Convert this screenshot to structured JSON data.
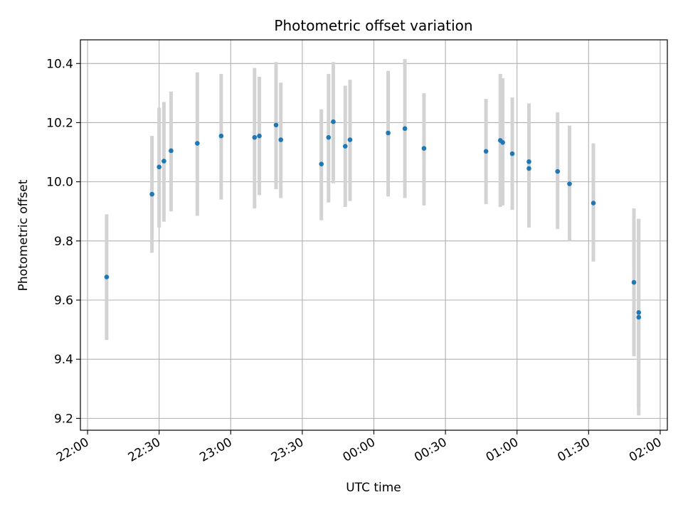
{
  "chart_data": {
    "type": "scatter",
    "title": "Photometric offset variation",
    "xlabel": "UTC time",
    "ylabel": "Photometric offset",
    "x_ticks": [
      "22:00",
      "22:30",
      "23:00",
      "23:30",
      "00:00",
      "00:30",
      "01:00",
      "01:30",
      "02:00"
    ],
    "y_ticks": [
      "9.2",
      "9.4",
      "9.6",
      "9.8",
      "10.0",
      "10.2",
      "10.4"
    ],
    "x_tick_minutes": [
      0,
      30,
      60,
      90,
      120,
      150,
      180,
      210,
      240
    ],
    "xlim_minutes": [
      -3,
      243
    ],
    "ylim": [
      9.16,
      10.48
    ],
    "grid": true,
    "marker_color": "#1f77b4",
    "errorbar_color": "#d3d3d3",
    "points": [
      {
        "t": "22:08",
        "y": 9.678,
        "lo": 9.465,
        "hi": 9.89
      },
      {
        "t": "22:27",
        "y": 9.958,
        "lo": 9.76,
        "hi": 10.155
      },
      {
        "t": "22:30",
        "y": 10.05,
        "lo": 9.845,
        "hi": 10.25
      },
      {
        "t": "22:32",
        "y": 10.07,
        "lo": 9.865,
        "hi": 10.27
      },
      {
        "t": "22:35",
        "y": 10.105,
        "lo": 9.9,
        "hi": 10.305
      },
      {
        "t": "22:46",
        "y": 10.13,
        "lo": 9.885,
        "hi": 10.37
      },
      {
        "t": "22:56",
        "y": 10.155,
        "lo": 9.94,
        "hi": 10.365
      },
      {
        "t": "23:10",
        "y": 10.15,
        "lo": 9.91,
        "hi": 10.385
      },
      {
        "t": "23:12",
        "y": 10.155,
        "lo": 9.955,
        "hi": 10.355
      },
      {
        "t": "23:19",
        "y": 10.192,
        "lo": 9.975,
        "hi": 10.405
      },
      {
        "t": "23:21",
        "y": 10.142,
        "lo": 9.945,
        "hi": 10.335
      },
      {
        "t": "23:38",
        "y": 10.06,
        "lo": 9.87,
        "hi": 10.245
      },
      {
        "t": "23:41",
        "y": 10.15,
        "lo": 9.93,
        "hi": 10.365
      },
      {
        "t": "23:43",
        "y": 10.203,
        "lo": 9.995,
        "hi": 10.405
      },
      {
        "t": "23:48",
        "y": 10.12,
        "lo": 9.915,
        "hi": 10.325
      },
      {
        "t": "23:50",
        "y": 10.142,
        "lo": 9.935,
        "hi": 10.345
      },
      {
        "t": "00:06",
        "y": 10.165,
        "lo": 9.95,
        "hi": 10.375
      },
      {
        "t": "00:13",
        "y": 10.18,
        "lo": 9.945,
        "hi": 10.415
      },
      {
        "t": "00:21",
        "y": 10.113,
        "lo": 9.92,
        "hi": 10.3
      },
      {
        "t": "00:47",
        "y": 10.103,
        "lo": 9.925,
        "hi": 10.28
      },
      {
        "t": "00:53",
        "y": 10.14,
        "lo": 9.915,
        "hi": 10.365
      },
      {
        "t": "00:54",
        "y": 10.133,
        "lo": 9.92,
        "hi": 10.35
      },
      {
        "t": "00:58",
        "y": 10.095,
        "lo": 9.905,
        "hi": 10.285
      },
      {
        "t": "01:05",
        "y": 10.068,
        "lo": 9.87,
        "hi": 10.265
      },
      {
        "t": "01:05",
        "y": 10.045,
        "lo": 9.845,
        "hi": 10.245
      },
      {
        "t": "01:17",
        "y": 10.035,
        "lo": 9.84,
        "hi": 10.235
      },
      {
        "t": "01:22",
        "y": 9.993,
        "lo": 9.8,
        "hi": 10.19
      },
      {
        "t": "01:32",
        "y": 9.928,
        "lo": 9.73,
        "hi": 10.13
      },
      {
        "t": "01:49",
        "y": 9.66,
        "lo": 9.41,
        "hi": 9.91
      },
      {
        "t": "01:51",
        "y": 9.558,
        "lo": 9.24,
        "hi": 9.875
      },
      {
        "t": "01:51",
        "y": 9.542,
        "lo": 9.21,
        "hi": 9.875
      }
    ]
  }
}
